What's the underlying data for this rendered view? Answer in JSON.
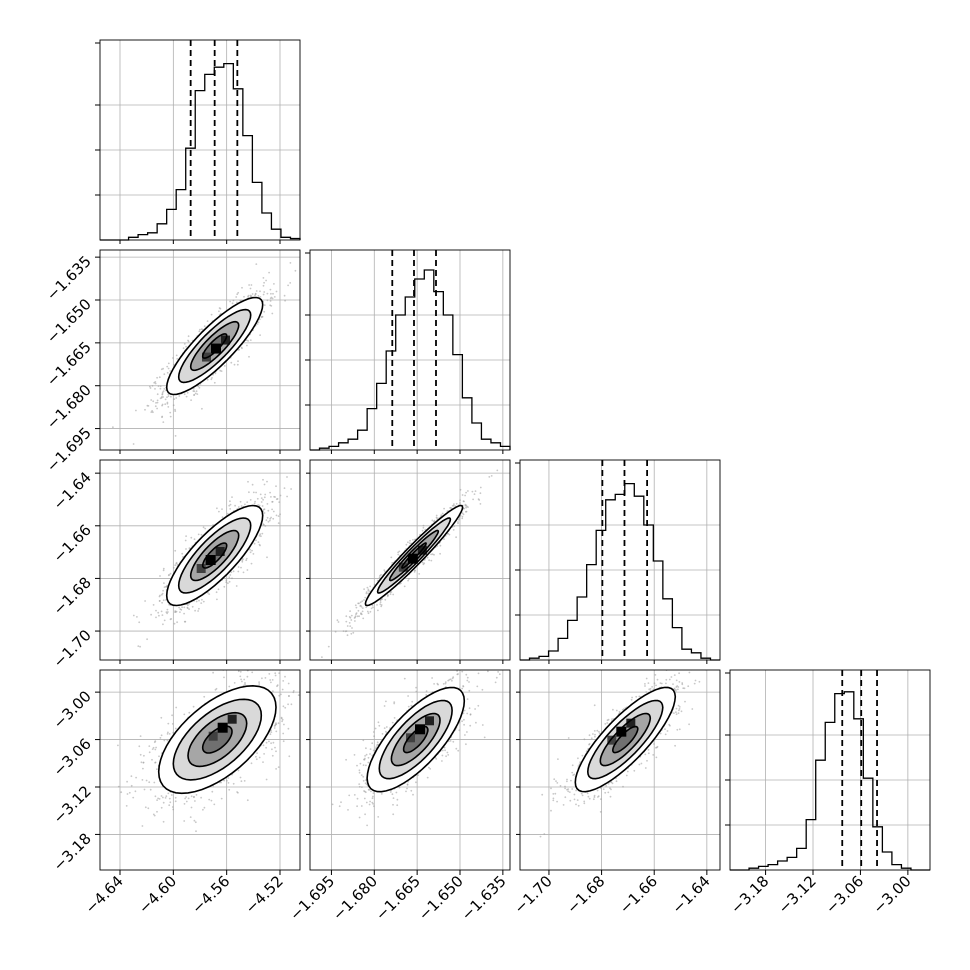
{
  "chart_data": {
    "type": "corner",
    "description_of_marks": "histograms on diagonal, 2D density with contours and scatter below",
    "parameters": [
      {
        "index": 0,
        "range": [
          -4.655,
          -4.505
        ],
        "ticks": [
          "−4.64",
          "−4.60",
          "−4.56",
          "−4.52"
        ],
        "tick_values": [
          -4.64,
          -4.6,
          -4.56,
          -4.52
        ],
        "quantiles": [
          -4.587,
          -4.569,
          -4.552
        ],
        "histogram": [
          0,
          0,
          0,
          0.015,
          0.03,
          0.04,
          0.09,
          0.17,
          0.28,
          0.51,
          0.83,
          0.92,
          0.96,
          0.98,
          0.84,
          0.58,
          0.32,
          0.15,
          0.06,
          0.015,
          0.008
        ]
      },
      {
        "index": 1,
        "range": [
          -1.7025,
          -1.6325
        ],
        "ticks": [
          "−1.695",
          "−1.680",
          "−1.665",
          "−1.650",
          "−1.635"
        ],
        "tick_values": [
          -1.695,
          -1.68,
          -1.665,
          -1.65,
          -1.635
        ],
        "quantiles": [
          -1.6737,
          -1.6661,
          -1.6584
        ],
        "histogram": [
          0,
          0.01,
          0.02,
          0.04,
          0.06,
          0.11,
          0.23,
          0.37,
          0.55,
          0.75,
          0.85,
          0.95,
          1.0,
          0.88,
          0.75,
          0.53,
          0.29,
          0.15,
          0.06,
          0.04,
          0.02
        ]
      },
      {
        "index": 2,
        "range": [
          -1.711,
          -1.635
        ],
        "ticks": [
          "−1.70",
          "−1.68",
          "−1.66",
          "−1.64"
        ],
        "tick_values": [
          -1.7,
          -1.68,
          -1.66,
          -1.64
        ],
        "quantiles": [
          -1.6797,
          -1.6713,
          -1.6627
        ],
        "histogram": [
          0,
          0.01,
          0.02,
          0.05,
          0.12,
          0.22,
          0.35,
          0.53,
          0.72,
          0.89,
          0.92,
          0.98,
          0.91,
          0.75,
          0.55,
          0.34,
          0.18,
          0.06,
          0.04,
          0.01,
          0
        ]
      },
      {
        "index": 3,
        "range": [
          -3.225,
          -2.972
        ],
        "ticks": [
          "−3.18",
          "−3.12",
          "−3.06",
          "−3.00"
        ],
        "tick_values": [
          -3.18,
          -3.12,
          -3.06,
          -3.0
        ],
        "quantiles": [
          -3.083,
          -3.059,
          -3.039
        ],
        "histogram": [
          0,
          0,
          0.01,
          0.02,
          0.03,
          0.05,
          0.07,
          0.12,
          0.28,
          0.61,
          0.82,
          0.98,
          0.99,
          0.84,
          0.51,
          0.24,
          0.1,
          0.03,
          0.01,
          0,
          0
        ]
      }
    ],
    "pairs": [
      {
        "x": 0,
        "y": 1,
        "mean": [
          -4.569,
          -1.6661
        ],
        "sd": [
          0.018,
          0.0085
        ],
        "corr": 0.85,
        "peak": [
          -4.568,
          -1.667
        ]
      },
      {
        "x": 0,
        "y": 2,
        "mean": [
          -4.569,
          -1.6713
        ],
        "sd": [
          0.018,
          0.0095
        ],
        "corr": 0.8,
        "peak": [
          -4.572,
          -1.673
        ]
      },
      {
        "x": 1,
        "y": 2,
        "mean": [
          -1.6661,
          -1.6713
        ],
        "sd": [
          0.0085,
          0.0095
        ],
        "corr": 0.965,
        "peak": [
          -1.6665,
          -1.6725
        ]
      },
      {
        "x": 0,
        "y": 3,
        "mean": [
          -4.567,
          -3.06
        ],
        "sd": [
          0.022,
          0.034
        ],
        "corr": 0.6,
        "peak": [
          -4.563,
          -3.045
        ]
      },
      {
        "x": 1,
        "y": 3,
        "mean": [
          -1.6655,
          -3.06
        ],
        "sd": [
          0.0085,
          0.033
        ],
        "corr": 0.74,
        "peak": [
          -1.664,
          -3.047
        ]
      },
      {
        "x": 2,
        "y": 3,
        "mean": [
          -1.671,
          -3.06
        ],
        "sd": [
          0.0095,
          0.033
        ],
        "corr": 0.82,
        "peak": [
          -1.6725,
          -3.05
        ]
      }
    ],
    "contour_levels_sigma": [
      0.5,
      1.0,
      1.5,
      2.0
    ],
    "grid": true
  }
}
